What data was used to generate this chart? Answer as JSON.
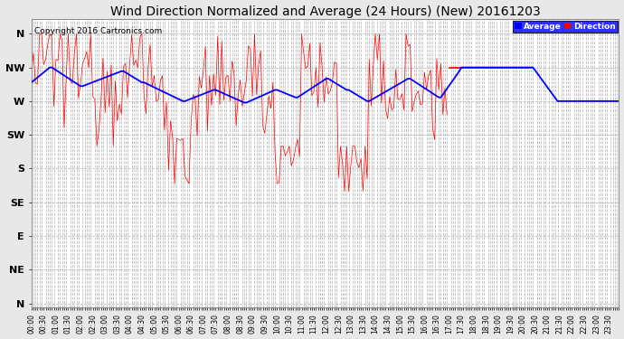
{
  "title": "Wind Direction Normalized and Average (24 Hours) (New) 20161203",
  "copyright": "Copyright 2016 Cartronics.com",
  "background_color": "#e8e8e8",
  "plot_bg_color": "#ffffff",
  "yticks": [
    360,
    315,
    270,
    225,
    180,
    135,
    90,
    45,
    0
  ],
  "ylabels": [
    "N",
    "NW",
    "W",
    "SW",
    "S",
    "SE",
    "E",
    "NE",
    "N"
  ],
  "ylim": [
    -5,
    380
  ],
  "avg_color": "#0000ff",
  "dir_color": "#ff0000",
  "avg_linewidth": 1.3,
  "dir_linewidth": 0.5,
  "title_fontsize": 10,
  "copyright_fontsize": 6.5,
  "ylabel_fontsize": 8,
  "tick_fontsize": 5.5,
  "grid_color": "#bbbbbb",
  "grid_style": "--",
  "grid_lw": 0.6
}
